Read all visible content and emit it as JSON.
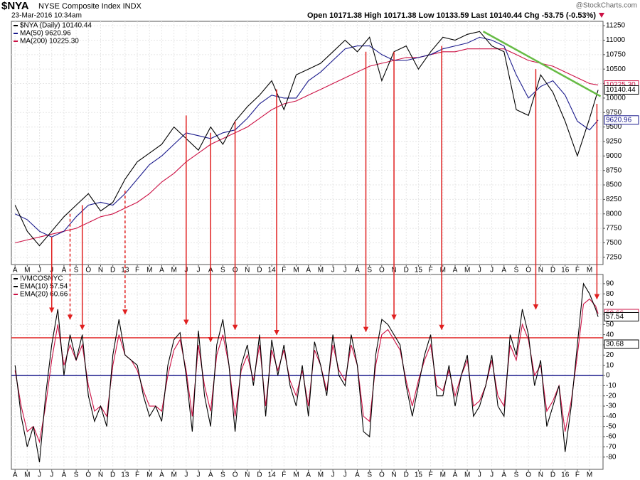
{
  "chart_data": [
    {
      "type": "line",
      "title": "$NYA",
      "subtitle": "NYSE Composite Index INDX",
      "date": "23-Mar-2016 10:34am",
      "ohlc": "Open 10171.38  High 10171.38  Low 10133.59  Last 10140.44  Chg -53.75 (-0.53%)",
      "watermark": "@StockCharts.com",
      "x": [
        0,
        1,
        2,
        3,
        4,
        5,
        6,
        7,
        8,
        9,
        10,
        11,
        12,
        13,
        14,
        15,
        16,
        17,
        18,
        19,
        20,
        21,
        22,
        23,
        24,
        25,
        26,
        27,
        28,
        29,
        30,
        31,
        32,
        33,
        34,
        35,
        36,
        37,
        38,
        39,
        40,
        41,
        42,
        43,
        44,
        45,
        46,
        47,
        47.7
      ],
      "series": [
        {
          "name": "$NYA (Daily) 10140.44",
          "color": "#000000",
          "values": [
            8150,
            7700,
            7450,
            7700,
            7950,
            8150,
            8350,
            8050,
            8200,
            8600,
            8900,
            9050,
            9200,
            9500,
            9300,
            9100,
            9500,
            9200,
            9600,
            9850,
            10050,
            10300,
            9800,
            10400,
            10500,
            10600,
            10800,
            11000,
            10800,
            11050,
            10300,
            10800,
            10900,
            10500,
            10800,
            11050,
            11000,
            11100,
            11150,
            10900,
            10800,
            9800,
            9700,
            10400,
            10100,
            9600,
            9000,
            9650,
            10140
          ]
        },
        {
          "name": "MA(50) 9620.96",
          "color": "#1a1a8c",
          "values": [
            8000,
            7900,
            7700,
            7600,
            7700,
            7950,
            8150,
            8200,
            8150,
            8350,
            8600,
            8850,
            9000,
            9200,
            9400,
            9350,
            9300,
            9400,
            9450,
            9650,
            9900,
            10050,
            10000,
            10000,
            10300,
            10450,
            10650,
            10850,
            10900,
            10900,
            10750,
            10650,
            10650,
            10700,
            10750,
            10850,
            10900,
            10950,
            11050,
            11000,
            10900,
            10400,
            10000,
            10200,
            10300,
            10050,
            9600,
            9450,
            9621
          ]
        },
        {
          "name": "MA(200) 10225.30",
          "color": "#cc1144",
          "values": [
            7500,
            7550,
            7600,
            7650,
            7700,
            7750,
            7850,
            7950,
            8000,
            8100,
            8200,
            8350,
            8550,
            8700,
            8900,
            9050,
            9200,
            9300,
            9400,
            9500,
            9650,
            9800,
            9900,
            9950,
            10050,
            10150,
            10250,
            10350,
            10450,
            10550,
            10600,
            10650,
            10700,
            10700,
            10750,
            10800,
            10800,
            10850,
            10850,
            10850,
            10850,
            10750,
            10650,
            10600,
            10550,
            10450,
            10350,
            10250,
            10225
          ]
        }
      ],
      "trendline": {
        "x": [
          38.3,
          47.9
        ],
        "values": [
          11150,
          10030
        ],
        "color": "#66bb44"
      },
      "tags": [
        {
          "value": 10225.3,
          "label": "10225.30",
          "color": "#cc1144",
          "boxed": false
        },
        {
          "value": 10140.44,
          "label": "10140.44",
          "color": "#000000",
          "boxed": true
        },
        {
          "value": 9620.96,
          "label": "9620.96",
          "color": "#1a1a8c",
          "boxed": false
        }
      ],
      "xlim": [
        -0.3,
        48.1
      ],
      "ylim": [
        7125,
        11325
      ],
      "xticks": [
        {
          "value": 0,
          "label": "A"
        },
        {
          "value": 1,
          "label": "M"
        },
        {
          "value": 2,
          "label": "J"
        },
        {
          "value": 3,
          "label": "J"
        },
        {
          "value": 4,
          "label": "A"
        },
        {
          "value": 5,
          "label": "S"
        },
        {
          "value": 6,
          "label": "O"
        },
        {
          "value": 7,
          "label": "N"
        },
        {
          "value": 8,
          "label": "D"
        },
        {
          "value": 9,
          "label": "13"
        },
        {
          "value": 10,
          "label": "F"
        },
        {
          "value": 11,
          "label": "M"
        },
        {
          "value": 12,
          "label": "A"
        },
        {
          "value": 13,
          "label": "M"
        },
        {
          "value": 14,
          "label": "J"
        },
        {
          "value": 15,
          "label": "J"
        },
        {
          "value": 16,
          "label": "A"
        },
        {
          "value": 17,
          "label": "S"
        },
        {
          "value": 18,
          "label": "O"
        },
        {
          "value": 19,
          "label": "N"
        },
        {
          "value": 20,
          "label": "D"
        },
        {
          "value": 21,
          "label": "14"
        },
        {
          "value": 22,
          "label": "F"
        },
        {
          "value": 23,
          "label": "M"
        },
        {
          "value": 24,
          "label": "A"
        },
        {
          "value": 25,
          "label": "M"
        },
        {
          "value": 26,
          "label": "J"
        },
        {
          "value": 27,
          "label": "J"
        },
        {
          "value": 28,
          "label": "A"
        },
        {
          "value": 29,
          "label": "S"
        },
        {
          "value": 30,
          "label": "O"
        },
        {
          "value": 31,
          "label": "N"
        },
        {
          "value": 32,
          "label": "D"
        },
        {
          "value": 33,
          "label": "15"
        },
        {
          "value": 34,
          "label": "F"
        },
        {
          "value": 35,
          "label": "M"
        },
        {
          "value": 36,
          "label": "A"
        },
        {
          "value": 37,
          "label": "M"
        },
        {
          "value": 38,
          "label": "J"
        },
        {
          "value": 39,
          "label": "J"
        },
        {
          "value": 40,
          "label": "A"
        },
        {
          "value": 41,
          "label": "S"
        },
        {
          "value": 42,
          "label": "O"
        },
        {
          "value": 43,
          "label": "N"
        },
        {
          "value": 44,
          "label": "D"
        },
        {
          "value": 45,
          "label": "16"
        },
        {
          "value": 46,
          "label": "F"
        },
        {
          "value": 47,
          "label": "M"
        }
      ],
      "yticks": [
        7250,
        7500,
        7750,
        8000,
        8250,
        8500,
        8750,
        9000,
        9250,
        9500,
        9750,
        10000,
        10250,
        10500,
        10750,
        11000,
        11250
      ],
      "grid": true
    },
    {
      "type": "line",
      "title": "!VMCOSNYC",
      "x": [
        0,
        0.5,
        1,
        1.5,
        2,
        2.5,
        3,
        3.5,
        4,
        4.5,
        5,
        5.5,
        6,
        6.5,
        7,
        7.5,
        8,
        8.5,
        9,
        9.5,
        10,
        10.5,
        11,
        11.5,
        12,
        12.5,
        13,
        13.5,
        14,
        14.5,
        15,
        15.5,
        16,
        16.5,
        17,
        17.5,
        18,
        18.5,
        19,
        19.5,
        20,
        20.5,
        21,
        21.5,
        22,
        22.5,
        23,
        23.5,
        24,
        24.5,
        25,
        25.5,
        26,
        26.5,
        27,
        27.5,
        28,
        28.5,
        29,
        29.5,
        30,
        30.5,
        31,
        31.5,
        32,
        32.5,
        33,
        33.5,
        34,
        34.5,
        35,
        35.5,
        36,
        36.5,
        37,
        37.5,
        38,
        38.5,
        39,
        39.5,
        40,
        40.5,
        41,
        41.5,
        42,
        42.5,
        43,
        43.5,
        44,
        44.5,
        45,
        45.5,
        46,
        46.5,
        47,
        47.5,
        47.7
      ],
      "series": [
        {
          "name": "EMA(10) 57.54",
          "color": "#000000",
          "values": [
            10,
            -40,
            -70,
            -50,
            -85,
            -20,
            30,
            65,
            0,
            40,
            15,
            40,
            -20,
            -45,
            -30,
            -50,
            20,
            55,
            20,
            15,
            10,
            -20,
            -40,
            -30,
            -45,
            10,
            35,
            42,
            0,
            -55,
            44,
            -20,
            -50,
            30,
            55,
            10,
            -55,
            10,
            30,
            -10,
            40,
            -40,
            35,
            0,
            30,
            -10,
            -30,
            10,
            -40,
            33,
            10,
            -20,
            40,
            0,
            -10,
            40,
            10,
            -55,
            -60,
            20,
            55,
            50,
            40,
            30,
            -10,
            -40,
            -10,
            20,
            40,
            -20,
            -20,
            10,
            -30,
            0,
            20,
            -40,
            -30,
            -10,
            20,
            -30,
            -40,
            40,
            20,
            65,
            40,
            -10,
            15,
            -50,
            -30,
            -10,
            -75,
            -30,
            30,
            90,
            80,
            65,
            57.54
          ]
        },
        {
          "name": "EMA(20) 60.66",
          "color": "#cc1144",
          "values": [
            5,
            -30,
            -55,
            -50,
            -65,
            -30,
            15,
            50,
            10,
            30,
            15,
            30,
            -10,
            -35,
            -30,
            -40,
            10,
            40,
            20,
            15,
            5,
            -15,
            -30,
            -30,
            -35,
            0,
            25,
            35,
            5,
            -40,
            30,
            -10,
            -35,
            20,
            40,
            10,
            -40,
            5,
            20,
            -5,
            30,
            -30,
            25,
            5,
            25,
            -5,
            -20,
            5,
            -30,
            25,
            10,
            -15,
            30,
            5,
            -5,
            30,
            10,
            -40,
            -45,
            10,
            40,
            45,
            35,
            25,
            -5,
            -30,
            -5,
            15,
            30,
            -10,
            -15,
            5,
            -20,
            0,
            15,
            -30,
            -25,
            -10,
            15,
            -20,
            -30,
            30,
            15,
            50,
            35,
            0,
            10,
            -35,
            -25,
            -10,
            -55,
            -25,
            20,
            70,
            75,
            68,
            60.66
          ]
        }
      ],
      "hlines": [
        {
          "value": 37,
          "color": "#e02020"
        },
        {
          "value": 0,
          "color": "#1a1a8c"
        }
      ],
      "tags": [
        {
          "value": 60.66,
          "label": "60.66",
          "color": "#cc1144",
          "boxed": false
        },
        {
          "value": 57.54,
          "label": "57.54",
          "color": "#000000",
          "boxed": true
        },
        {
          "value": 30.68,
          "label": "30.68",
          "color": "#000000",
          "boxed": true
        }
      ],
      "xlim": [
        -0.3,
        48.1
      ],
      "ylim": [
        -92,
        99
      ],
      "xticks": [
        {
          "value": 0,
          "label": "A"
        },
        {
          "value": 1,
          "label": "M"
        },
        {
          "value": 2,
          "label": "J"
        },
        {
          "value": 3,
          "label": "J"
        },
        {
          "value": 4,
          "label": "A"
        },
        {
          "value": 5,
          "label": "S"
        },
        {
          "value": 6,
          "label": "O"
        },
        {
          "value": 7,
          "label": "N"
        },
        {
          "value": 8,
          "label": "D"
        },
        {
          "value": 9,
          "label": "13"
        },
        {
          "value": 10,
          "label": "F"
        },
        {
          "value": 11,
          "label": "M"
        },
        {
          "value": 12,
          "label": "A"
        },
        {
          "value": 13,
          "label": "M"
        },
        {
          "value": 14,
          "label": "J"
        },
        {
          "value": 15,
          "label": "J"
        },
        {
          "value": 16,
          "label": "A"
        },
        {
          "value": 17,
          "label": "S"
        },
        {
          "value": 18,
          "label": "O"
        },
        {
          "value": 19,
          "label": "N"
        },
        {
          "value": 20,
          "label": "D"
        },
        {
          "value": 21,
          "label": "14"
        },
        {
          "value": 22,
          "label": "F"
        },
        {
          "value": 23,
          "label": "M"
        },
        {
          "value": 24,
          "label": "A"
        },
        {
          "value": 25,
          "label": "M"
        },
        {
          "value": 26,
          "label": "J"
        },
        {
          "value": 27,
          "label": "J"
        },
        {
          "value": 28,
          "label": "A"
        },
        {
          "value": 29,
          "label": "S"
        },
        {
          "value": 30,
          "label": "O"
        },
        {
          "value": 31,
          "label": "N"
        },
        {
          "value": 32,
          "label": "D"
        },
        {
          "value": 33,
          "label": "15"
        },
        {
          "value": 34,
          "label": "F"
        },
        {
          "value": 35,
          "label": "M"
        },
        {
          "value": 36,
          "label": "A"
        },
        {
          "value": 37,
          "label": "M"
        },
        {
          "value": 38,
          "label": "J"
        },
        {
          "value": 39,
          "label": "J"
        },
        {
          "value": 40,
          "label": "A"
        },
        {
          "value": 41,
          "label": "S"
        },
        {
          "value": 42,
          "label": "O"
        },
        {
          "value": 43,
          "label": "N"
        },
        {
          "value": 44,
          "label": "D"
        },
        {
          "value": 45,
          "label": "16"
        },
        {
          "value": 46,
          "label": "F"
        },
        {
          "value": 47,
          "label": "M"
        }
      ],
      "yticks": [
        -80,
        -70,
        -60,
        -50,
        -40,
        -30,
        -20,
        -10,
        0,
        10,
        20,
        30,
        40,
        50,
        60,
        70,
        80,
        90
      ],
      "grid": true
    }
  ],
  "arrows": [
    {
      "x": 3.0,
      "from": 7600,
      "to": 62,
      "dashed": false
    },
    {
      "x": 4.5,
      "from": 8000,
      "to": 55,
      "dashed": true
    },
    {
      "x": 5.5,
      "from": 8150,
      "to": 45,
      "dashed": false
    },
    {
      "x": 9.0,
      "from": 8400,
      "to": 60,
      "dashed": true
    },
    {
      "x": 14.0,
      "from": 9700,
      "to": 50,
      "dashed": false
    },
    {
      "x": 16.0,
      "from": 9400,
      "to": 33,
      "dashed": false
    },
    {
      "x": 18.0,
      "from": 9600,
      "to": 45,
      "dashed": false
    },
    {
      "x": 21.4,
      "from": 10150,
      "to": 40,
      "dashed": false
    },
    {
      "x": 28.7,
      "from": 10800,
      "to": 43,
      "dashed": false
    },
    {
      "x": 31.0,
      "from": 10800,
      "to": 55,
      "dashed": false
    },
    {
      "x": 34.9,
      "from": 10900,
      "to": 45,
      "dashed": false
    },
    {
      "x": 42.6,
      "from": 10500,
      "to": 65,
      "dashed": false
    },
    {
      "x": 47.6,
      "from": 9900,
      "to": 75,
      "dashed": false
    }
  ]
}
